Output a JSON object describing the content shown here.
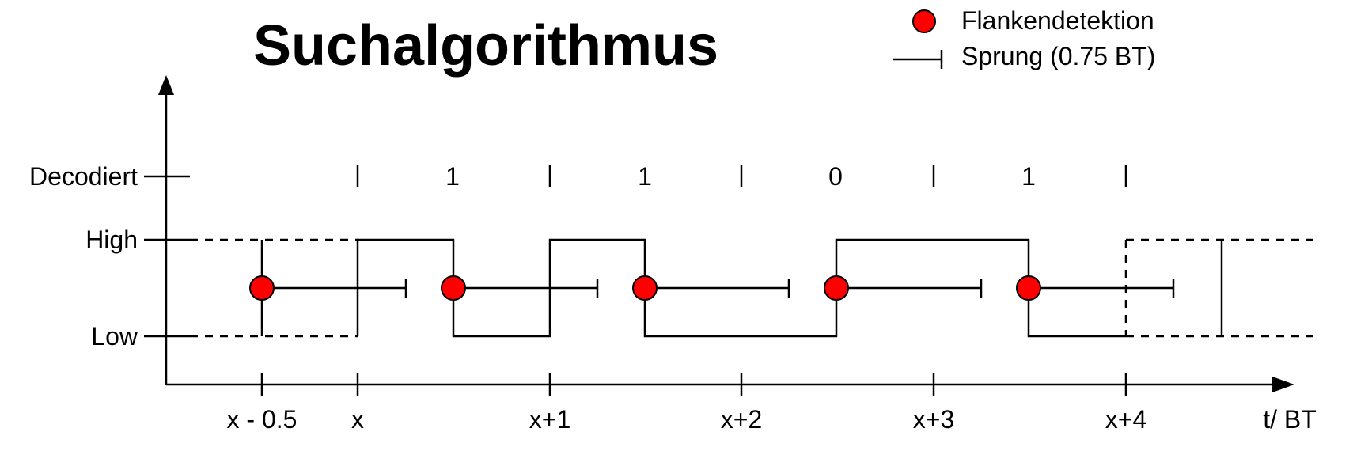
{
  "title": "Suchalgorithmus",
  "legend": {
    "detection_label": "Flankendetektion",
    "jump_label": "Sprung (0.75 BT)",
    "detection_color": "#ff0000"
  },
  "y_levels": [
    "Decodiert",
    "High",
    "Low"
  ],
  "x_ticks": [
    "x - 0.5",
    "x",
    "x+1",
    "x+2",
    "x+3",
    "x+4"
  ],
  "x_axis_label": "t/ BT",
  "decoded_bits": [
    "1",
    "1",
    "0",
    "1"
  ],
  "chart_data": {
    "type": "diagram",
    "signal_levels_per_bit": [
      [
        "high",
        "low"
      ],
      [
        "high",
        "low"
      ],
      [
        "low",
        "high"
      ],
      [
        "high",
        "low"
      ]
    ],
    "edge_detections_bt": [
      -0.5,
      0.5,
      1.5,
      2.5,
      3.5
    ],
    "jump_length_bt": 0.75
  }
}
